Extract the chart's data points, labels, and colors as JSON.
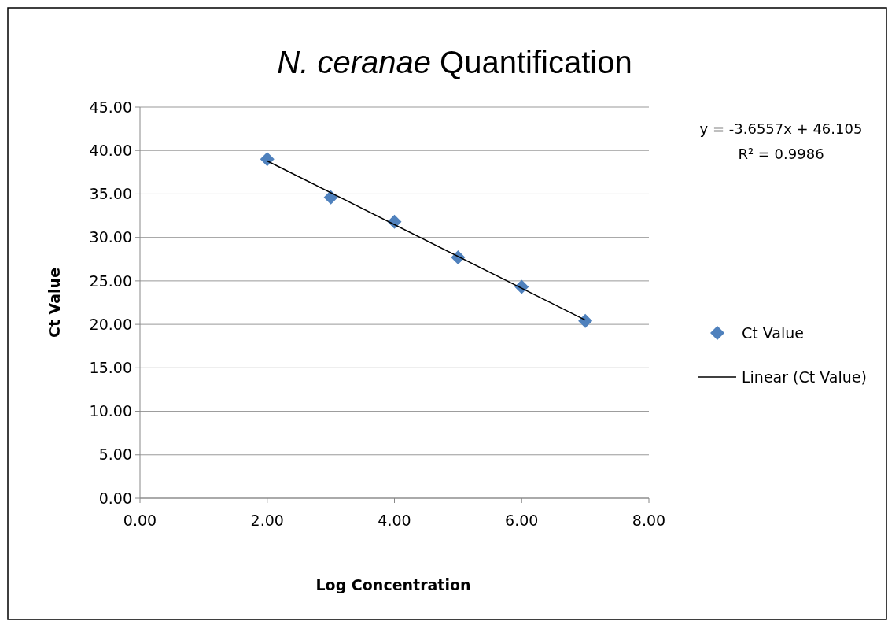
{
  "chart_data": {
    "type": "scatter",
    "title": "N. ceranae Quantification",
    "xlabel": "Log Concentration",
    "ylabel": "Ct Value",
    "xlim": [
      0,
      8
    ],
    "xticks": [
      {
        "value": 0,
        "label": "0.00"
      },
      {
        "value": 2,
        "label": "2.00"
      },
      {
        "value": 4,
        "label": "4.00"
      },
      {
        "value": 6,
        "label": "6.00"
      },
      {
        "value": 8,
        "label": "8.00"
      }
    ],
    "ylim": [
      0,
      45
    ],
    "yticks": [
      {
        "value": 0,
        "label": "0.00"
      },
      {
        "value": 5,
        "label": "5.00"
      },
      {
        "value": 10,
        "label": "10.00"
      },
      {
        "value": 15,
        "label": "15.00"
      },
      {
        "value": 20,
        "label": "20.00"
      },
      {
        "value": 25,
        "label": "25.00"
      },
      {
        "value": 30,
        "label": "30.00"
      },
      {
        "value": 35,
        "label": "35.00"
      },
      {
        "value": 40,
        "label": "40.00"
      },
      {
        "value": 45,
        "label": "45.00"
      }
    ],
    "grid": "y",
    "legend": "right",
    "marker": "diamond",
    "series": [
      {
        "name": "Ct Value",
        "color": "#4f81bd",
        "x": [
          2,
          3,
          4,
          5,
          6,
          7
        ],
        "values": [
          39.0,
          34.6,
          31.8,
          27.7,
          24.3,
          20.4
        ]
      },
      {
        "name": "Linear (Ct Value)",
        "type": "line",
        "color": "#000000",
        "marker": "none",
        "line_style": "solid",
        "x": [
          2,
          7
        ],
        "values": [
          38.8,
          20.5
        ]
      }
    ],
    "annotations": [
      "y = -3.6557x + 46.105",
      "R² = 0.9986"
    ]
  }
}
